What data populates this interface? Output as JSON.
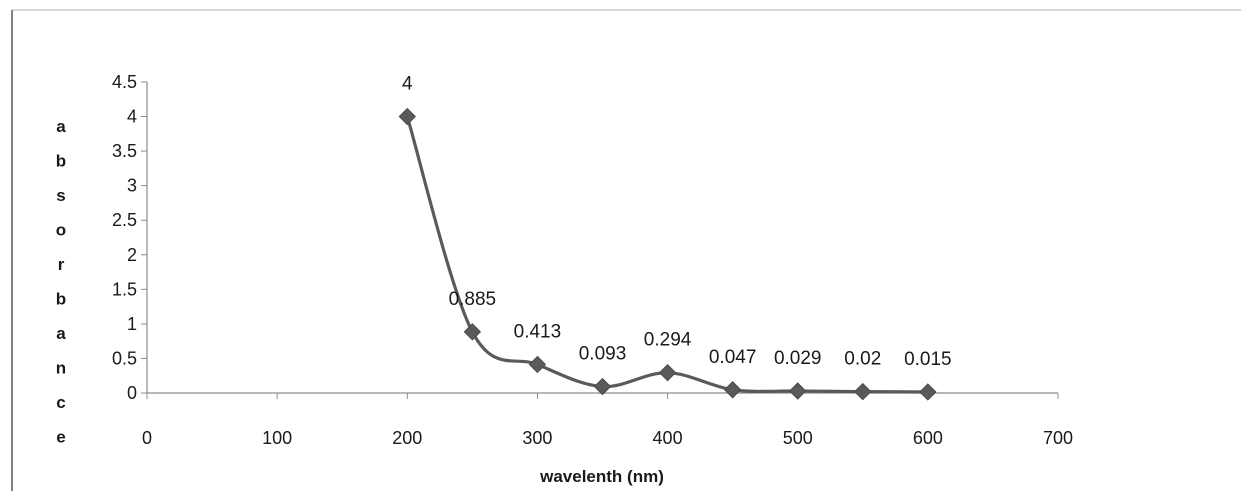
{
  "chart_data": {
    "type": "line",
    "title": "",
    "xlabel": "wavelenth (nm)",
    "ylabel": "absorbance",
    "xlim": [
      0,
      700
    ],
    "ylim": [
      0,
      4.5
    ],
    "x_ticks": [
      "0",
      "100",
      "200",
      "300",
      "400",
      "500",
      "600",
      "700"
    ],
    "y_ticks": [
      "0",
      "0.5",
      "1",
      "1.5",
      "2",
      "2.5",
      "3",
      "3.5",
      "4",
      "4.5"
    ],
    "grid": false,
    "legend": "none",
    "marker": "diamond",
    "smooth": true,
    "color": "#5a5a5a",
    "series": [
      {
        "x": [
          200,
          250,
          300,
          350,
          400,
          450,
          500,
          550,
          600
        ],
        "y": [
          4,
          0.885,
          0.413,
          0.093,
          0.294,
          0.047,
          0.029,
          0.02,
          0.015
        ],
        "labels": [
          "4",
          "0.885",
          "0.413",
          "0.093",
          "0.294",
          "0.047",
          "0.029",
          "0.02",
          "0.015"
        ]
      }
    ]
  }
}
